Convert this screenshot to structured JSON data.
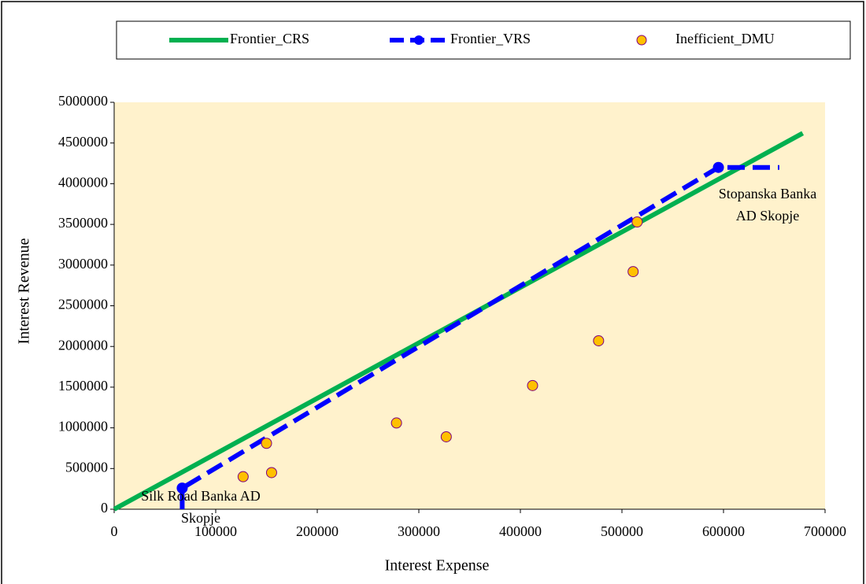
{
  "chart_data": {
    "type": "scatter",
    "x_label": "Interest Expense",
    "y_label": "Interest Revenue",
    "xlim": [
      0,
      700000
    ],
    "xticks": [
      0,
      100000,
      200000,
      300000,
      400000,
      500000,
      600000,
      700000
    ],
    "ylim": [
      0,
      5000000
    ],
    "yticks": [
      0,
      500000,
      1000000,
      1500000,
      2000000,
      2500000,
      3000000,
      3500000,
      4000000,
      4500000,
      5000000
    ],
    "plot_background": "#fff2cc",
    "legend": "top",
    "series": [
      {
        "name": "Frontier_CRS",
        "color": "#00b050",
        "label_color": "#000000",
        "line_style": "solid",
        "x": [
          0,
          678000
        ],
        "values": [
          0,
          4620000
        ]
      },
      {
        "name": "Frontier_VRS",
        "color": "#0000ff",
        "label_color": "#0000ff",
        "line_style": "dashed",
        "x": [
          67000,
          67000,
          595000,
          655000
        ],
        "values": [
          0,
          260000,
          4200000,
          4200000
        ]
      },
      {
        "name": "Inefficient_DMU",
        "color": "#ffc000",
        "label_color": "#800080",
        "line_style": "none",
        "x": [
          127000,
          150000,
          155000,
          278000,
          327000,
          412000,
          477000,
          511000,
          515000
        ],
        "values": [
          400000,
          810000,
          450000,
          1060000,
          890000,
          1520000,
          2070000,
          2920000,
          3530000
        ]
      }
    ],
    "annotations": [
      {
        "lines": [
          "Silk Road Banka AD",
          "Skopje"
        ],
        "color": "#0000ff"
      },
      {
        "lines": [
          "Stopanska Banka",
          "AD Skopje"
        ],
        "color": "#0000ff"
      }
    ]
  }
}
